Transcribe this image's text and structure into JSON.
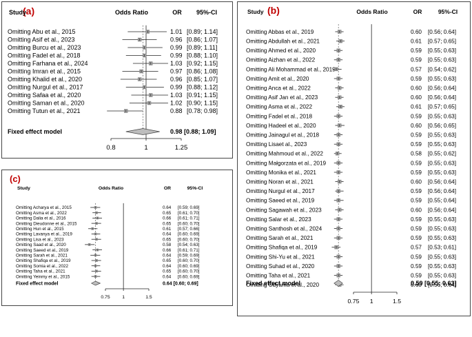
{
  "chart_data": [
    {
      "type": "forest",
      "panel_label": "(a)",
      "headers": {
        "study": "Study",
        "effect": "Odds Ratio",
        "or": "OR",
        "ci": "95%-CI"
      },
      "studies": [
        {
          "label": "Omitting Abu et al., 2015",
          "or": 1.01,
          "lo": 0.89,
          "hi": 1.14,
          "or_text": "1.01",
          "ci_text": "[0.89; 1.14]"
        },
        {
          "label": "Omitting Asif et al., 2023",
          "or": 0.96,
          "lo": 0.86,
          "hi": 1.07,
          "or_text": "0.96",
          "ci_text": "[0.86; 1.07]"
        },
        {
          "label": "Omitting Burcu et al., 2023",
          "or": 0.99,
          "lo": 0.89,
          "hi": 1.11,
          "or_text": "0.99",
          "ci_text": "[0.89; 1.11]"
        },
        {
          "label": "Omitting Fadel et al., 2018",
          "or": 0.99,
          "lo": 0.88,
          "hi": 1.1,
          "or_text": "0.99",
          "ci_text": "[0.88; 1.10]"
        },
        {
          "label": "Omitting Farhana et al., 2024",
          "or": 1.03,
          "lo": 0.92,
          "hi": 1.15,
          "or_text": "1.03",
          "ci_text": "[0.92; 1.15]"
        },
        {
          "label": "Omitting Imran et al., 2015",
          "or": 0.97,
          "lo": 0.86,
          "hi": 1.08,
          "or_text": "0.97",
          "ci_text": "[0.86; 1.08]"
        },
        {
          "label": "Omitting Khalid et al., 2020",
          "or": 0.96,
          "lo": 0.85,
          "hi": 1.07,
          "or_text": "0.96",
          "ci_text": "[0.85; 1.07]"
        },
        {
          "label": "Omitting Nurgul et al., 2017",
          "or": 0.99,
          "lo": 0.88,
          "hi": 1.12,
          "or_text": "0.99",
          "ci_text": "[0.88; 1.12]"
        },
        {
          "label": "Omitting Safaa et al., 2020",
          "or": 1.03,
          "lo": 0.91,
          "hi": 1.15,
          "or_text": "1.03",
          "ci_text": "[0.91; 1.15]"
        },
        {
          "label": "Omitting Saman et al., 2020",
          "or": 1.02,
          "lo": 0.9,
          "hi": 1.15,
          "or_text": "1.02",
          "ci_text": "[0.90; 1.15]"
        },
        {
          "label": "Omitting Tutun et al., 2021",
          "or": 0.88,
          "lo": 0.78,
          "hi": 0.98,
          "or_text": "0.88",
          "ci_text": "[0.78; 0.98]"
        }
      ],
      "pooled": {
        "label": "Fixed effect model",
        "or": 0.98,
        "lo": 0.88,
        "hi": 1.09,
        "text": "0.98 [0.88; 1.09]"
      },
      "xlim": [
        0.8,
        1.25
      ],
      "ticks": [
        0.8,
        1,
        1.25
      ],
      "tick_labels": [
        "0.8",
        "1",
        "1.25"
      ]
    },
    {
      "type": "forest",
      "panel_label": "(b)",
      "headers": {
        "study": "Study",
        "effect": "Odds Ratio",
        "or": "OR",
        "ci": "95%-CI"
      },
      "studies": [
        {
          "label": "Omitting Abbas et al., 2019",
          "or": 0.6,
          "lo": 0.56,
          "hi": 0.64,
          "or_text": "0.60",
          "ci_text": "[0.56; 0.64]"
        },
        {
          "label": "Omitting Abdullah et al., 2021",
          "or": 0.61,
          "lo": 0.57,
          "hi": 0.65,
          "or_text": "0.61",
          "ci_text": "[0.57; 0.65]"
        },
        {
          "label": "Omitting Ahmed et al., 2020",
          "or": 0.59,
          "lo": 0.55,
          "hi": 0.63,
          "or_text": "0.59",
          "ci_text": "[0.55; 0.63]"
        },
        {
          "label": "Omitting Aizhan et al., 2022",
          "or": 0.59,
          "lo": 0.55,
          "hi": 0.63,
          "or_text": "0.59",
          "ci_text": "[0.55; 0.63]"
        },
        {
          "label": "Omitting Ali Mohammad et al., 2019",
          "or": 0.57,
          "lo": 0.54,
          "hi": 0.62,
          "or_text": "0.57",
          "ci_text": "[0.54; 0.62]"
        },
        {
          "label": "Omitting Amit et al., 2020",
          "or": 0.59,
          "lo": 0.55,
          "hi": 0.63,
          "or_text": "0.59",
          "ci_text": "[0.55; 0.63]"
        },
        {
          "label": "Omitting Anca et al., 2022",
          "or": 0.6,
          "lo": 0.56,
          "hi": 0.64,
          "or_text": "0.60",
          "ci_text": "[0.56; 0.64]"
        },
        {
          "label": "Omitting Asif Jan et al., 2023",
          "or": 0.6,
          "lo": 0.56,
          "hi": 0.64,
          "or_text": "0.60",
          "ci_text": "[0.56; 0.64]"
        },
        {
          "label": "Omitting Asma et al., 2022",
          "or": 0.61,
          "lo": 0.57,
          "hi": 0.65,
          "or_text": "0.61",
          "ci_text": "[0.57; 0.65]"
        },
        {
          "label": "Omitting Fadel et al., 2018",
          "or": 0.59,
          "lo": 0.55,
          "hi": 0.63,
          "or_text": "0.59",
          "ci_text": "[0.55; 0.63]"
        },
        {
          "label": "Omitting Hadeel et al., 2020",
          "or": 0.6,
          "lo": 0.56,
          "hi": 0.65,
          "or_text": "0.60",
          "ci_text": "[0.56; 0.65]"
        },
        {
          "label": "Omitting Jainagul et al., 2018",
          "or": 0.59,
          "lo": 0.55,
          "hi": 0.63,
          "or_text": "0.59",
          "ci_text": "[0.55; 0.63]"
        },
        {
          "label": "Omitting Lisaet al., 2023",
          "or": 0.59,
          "lo": 0.55,
          "hi": 0.63,
          "or_text": "0.59",
          "ci_text": "[0.55; 0.63]"
        },
        {
          "label": "Omitting Mahmoud et al., 2022",
          "or": 0.58,
          "lo": 0.55,
          "hi": 0.62,
          "or_text": "0.58",
          "ci_text": "[0.55; 0.62]"
        },
        {
          "label": "Omitting Małgorzata et al., 2019",
          "or": 0.59,
          "lo": 0.55,
          "hi": 0.63,
          "or_text": "0.59",
          "ci_text": "[0.55; 0.63]"
        },
        {
          "label": "Omitting Monika et al., 2021",
          "or": 0.59,
          "lo": 0.55,
          "hi": 0.63,
          "or_text": "0.59",
          "ci_text": "[0.55; 0.63]"
        },
        {
          "label": "Omitting Noran et al., 2021",
          "or": 0.6,
          "lo": 0.56,
          "hi": 0.64,
          "or_text": "0.60",
          "ci_text": "[0.56; 0.64]"
        },
        {
          "label": "Omitting Nurgul et al., 2017",
          "or": 0.59,
          "lo": 0.56,
          "hi": 0.64,
          "or_text": "0.59",
          "ci_text": "[0.56; 0.64]"
        },
        {
          "label": "Omitting Saeed et al., 2019",
          "or": 0.59,
          "lo": 0.55,
          "hi": 0.64,
          "or_text": "0.59",
          "ci_text": "[0.55; 0.64]"
        },
        {
          "label": "Omitting Sagawah et al., 2023",
          "or": 0.6,
          "lo": 0.56,
          "hi": 0.64,
          "or_text": "0.60",
          "ci_text": "[0.56; 0.64]"
        },
        {
          "label": "Omitting Salar et al., 2023",
          "or": 0.59,
          "lo": 0.55,
          "hi": 0.63,
          "or_text": "0.59",
          "ci_text": "[0.55; 0.63]"
        },
        {
          "label": "Omitting Santhosh et al., 2024",
          "or": 0.59,
          "lo": 0.55,
          "hi": 0.63,
          "or_text": "0.59",
          "ci_text": "[0.55; 0.63]"
        },
        {
          "label": "Omitting Sarah et al., 2021",
          "or": 0.59,
          "lo": 0.55,
          "hi": 0.63,
          "or_text": "0.59",
          "ci_text": "[0.55; 0.63]"
        },
        {
          "label": "Omitting Shafiqa et al., 2019",
          "or": 0.57,
          "lo": 0.53,
          "hi": 0.61,
          "or_text": "0.57",
          "ci_text": "[0.53; 0.61]"
        },
        {
          "label": "Omitting Shi-Yu et al., 2021",
          "or": 0.59,
          "lo": 0.55,
          "hi": 0.63,
          "or_text": "0.59",
          "ci_text": "[0.55; 0.63]"
        },
        {
          "label": "Omitting Suhad et al., 2020",
          "or": 0.59,
          "lo": 0.55,
          "hi": 0.63,
          "or_text": "0.59",
          "ci_text": "[0.55; 0.63]"
        },
        {
          "label": "Omitting Taha et al., 2021",
          "or": 0.59,
          "lo": 0.55,
          "hi": 0.63,
          "or_text": "0.59",
          "ci_text": "[0.55; 0.63]"
        },
        {
          "label": "Omitting Udyama et al., 2020",
          "or": 0.6,
          "lo": 0.56,
          "hi": 0.64,
          "or_text": "0.60",
          "ci_text": "[0.56; 0.64]"
        }
      ],
      "pooled": {
        "label": "Fixed effect model",
        "or": 0.59,
        "lo": 0.55,
        "hi": 0.63,
        "text": "0.59 [0.55; 0.63]"
      },
      "xlim": [
        0.75,
        1.5
      ],
      "ticks": [
        0.75,
        1,
        1.5
      ],
      "tick_labels": [
        "0.75",
        "1",
        "1.5"
      ]
    },
    {
      "type": "forest",
      "panel_label": "(c)",
      "headers": {
        "study": "Study",
        "effect": "Odds Ratio",
        "or": "OR",
        "ci": "95%-CI"
      },
      "studies": [
        {
          "label": "Omitting Acharya et al., 2015",
          "or": 0.64,
          "lo": 0.59,
          "hi": 0.69,
          "or_text": "0.64",
          "ci_text": "[0.59; 0.69]"
        },
        {
          "label": "Omitting Asma et al., 2022",
          "or": 0.65,
          "lo": 0.61,
          "hi": 0.7,
          "or_text": "0.65",
          "ci_text": "[0.61; 0.70]"
        },
        {
          "label": "Omitting Dalia et al., 2016",
          "or": 0.66,
          "lo": 0.61,
          "hi": 0.71,
          "or_text": "0.66",
          "ci_text": "[0.61; 0.71]"
        },
        {
          "label": "Omitting Dieudonne et al., 2015",
          "or": 0.65,
          "lo": 0.6,
          "hi": 0.7,
          "or_text": "0.65",
          "ci_text": "[0.60; 0.70]"
        },
        {
          "label": "Omitting Hun et al., 2015",
          "or": 0.61,
          "lo": 0.57,
          "hi": 0.66,
          "or_text": "0.61",
          "ci_text": "[0.57; 0.66]"
        },
        {
          "label": "Omitting Lavanya et al., 2019",
          "or": 0.64,
          "lo": 0.6,
          "hi": 0.69,
          "or_text": "0.64",
          "ci_text": "[0.60; 0.69]"
        },
        {
          "label": "Omitting Lisa et al., 2023",
          "or": 0.65,
          "lo": 0.6,
          "hi": 0.7,
          "or_text": "0.65",
          "ci_text": "[0.60; 0.70]"
        },
        {
          "label": "Omitting Saad et al., 2020",
          "or": 0.58,
          "lo": 0.54,
          "hi": 0.63,
          "or_text": "0.58",
          "ci_text": "[0.54; 0.63]"
        },
        {
          "label": "Omitting Saeed et al., 2019",
          "or": 0.66,
          "lo": 0.61,
          "hi": 0.71,
          "or_text": "0.66",
          "ci_text": "[0.61; 0.71]"
        },
        {
          "label": "Omitting Sarah et al., 2021",
          "or": 0.64,
          "lo": 0.59,
          "hi": 0.69,
          "or_text": "0.64",
          "ci_text": "[0.59; 0.69]"
        },
        {
          "label": "Omitting Shafiqa et al., 2019",
          "or": 0.65,
          "lo": 0.6,
          "hi": 0.7,
          "or_text": "0.65",
          "ci_text": "[0.60; 0.70]"
        },
        {
          "label": "Omitting Somia et al., 2022",
          "or": 0.64,
          "lo": 0.6,
          "hi": 0.69,
          "or_text": "0.64",
          "ci_text": "[0.60; 0.69]"
        },
        {
          "label": "Omitting Taha et al., 2021",
          "or": 0.65,
          "lo": 0.6,
          "hi": 0.7,
          "or_text": "0.65",
          "ci_text": "[0.60; 0.70]"
        },
        {
          "label": "Omitting Yeinmy et al., 2015",
          "or": 0.64,
          "lo": 0.6,
          "hi": 0.69,
          "or_text": "0.64",
          "ci_text": "[0.60; 0.69]"
        }
      ],
      "pooled": {
        "label": "Fixed effect model",
        "or": 0.64,
        "lo": 0.6,
        "hi": 0.69,
        "text": "0.64 [0.60; 0.69]"
      },
      "xlim": [
        0.75,
        1.5
      ],
      "ticks": [
        0.75,
        1,
        1.5
      ],
      "tick_labels": [
        "0.75",
        "1",
        "1.5"
      ]
    }
  ]
}
